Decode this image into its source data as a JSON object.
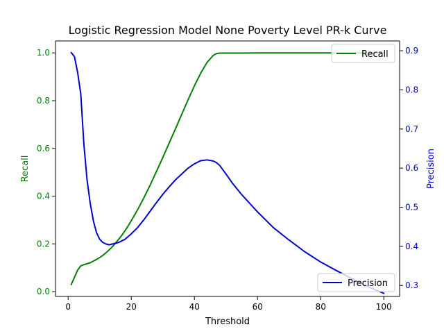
{
  "chart_data": {
    "type": "line",
    "title": "Logistic Regression Model None Poverty Level PR-k Curve",
    "xlabel": "Threshold",
    "ylabel_left": "Recall",
    "ylabel_right": "Precision",
    "xlim": [
      -4,
      105
    ],
    "ylim_left": [
      -0.02,
      1.05
    ],
    "ylim_right": [
      0.272,
      0.925
    ],
    "x_ticks": [
      0,
      20,
      40,
      60,
      80,
      100
    ],
    "y_ticks_left": [
      0.0,
      0.2,
      0.4,
      0.6,
      0.8,
      1.0
    ],
    "y_ticks_right": [
      0.3,
      0.4,
      0.5,
      0.6,
      0.7,
      0.8,
      0.9
    ],
    "grid": false,
    "series": [
      {
        "name": "Recall",
        "axis": "left",
        "color": "#008000",
        "legend_position": "top-right",
        "x": [
          1,
          2,
          3,
          4,
          5,
          6,
          7,
          8,
          9,
          10,
          11,
          12,
          13,
          14,
          15,
          16,
          17,
          18,
          19,
          20,
          22,
          24,
          26,
          28,
          30,
          32,
          34,
          36,
          38,
          40,
          42,
          44,
          46,
          47,
          48,
          49,
          50,
          55,
          60,
          70,
          80,
          90,
          100
        ],
        "y": [
          0.03,
          0.06,
          0.09,
          0.108,
          0.113,
          0.117,
          0.121,
          0.128,
          0.135,
          0.143,
          0.152,
          0.163,
          0.175,
          0.188,
          0.203,
          0.219,
          0.236,
          0.255,
          0.275,
          0.297,
          0.343,
          0.393,
          0.447,
          0.504,
          0.562,
          0.622,
          0.682,
          0.743,
          0.804,
          0.862,
          0.915,
          0.96,
          0.99,
          0.997,
          0.999,
          0.999,
          0.999,
          0.999,
          1.0,
          1.0,
          1.0,
          1.0,
          1.0
        ]
      },
      {
        "name": "Precision",
        "axis": "right",
        "color": "#0000cc",
        "legend_position": "bottom-right",
        "x": [
          1,
          2,
          3,
          4,
          5,
          6,
          7,
          8,
          9,
          10,
          11,
          12,
          13,
          14,
          15,
          16,
          18,
          20,
          22,
          24,
          26,
          28,
          30,
          32,
          34,
          36,
          38,
          40,
          42,
          44,
          46,
          47,
          48,
          50,
          52,
          55,
          60,
          65,
          70,
          75,
          80,
          85,
          90,
          95,
          100
        ],
        "y": [
          0.895,
          0.885,
          0.845,
          0.79,
          0.66,
          0.57,
          0.51,
          0.465,
          0.435,
          0.418,
          0.41,
          0.406,
          0.404,
          0.406,
          0.408,
          0.41,
          0.418,
          0.432,
          0.448,
          0.468,
          0.49,
          0.512,
          0.533,
          0.552,
          0.57,
          0.585,
          0.6,
          0.611,
          0.619,
          0.621,
          0.618,
          0.614,
          0.607,
          0.585,
          0.562,
          0.532,
          0.488,
          0.448,
          0.416,
          0.386,
          0.36,
          0.338,
          0.317,
          0.297,
          0.28
        ]
      }
    ]
  }
}
